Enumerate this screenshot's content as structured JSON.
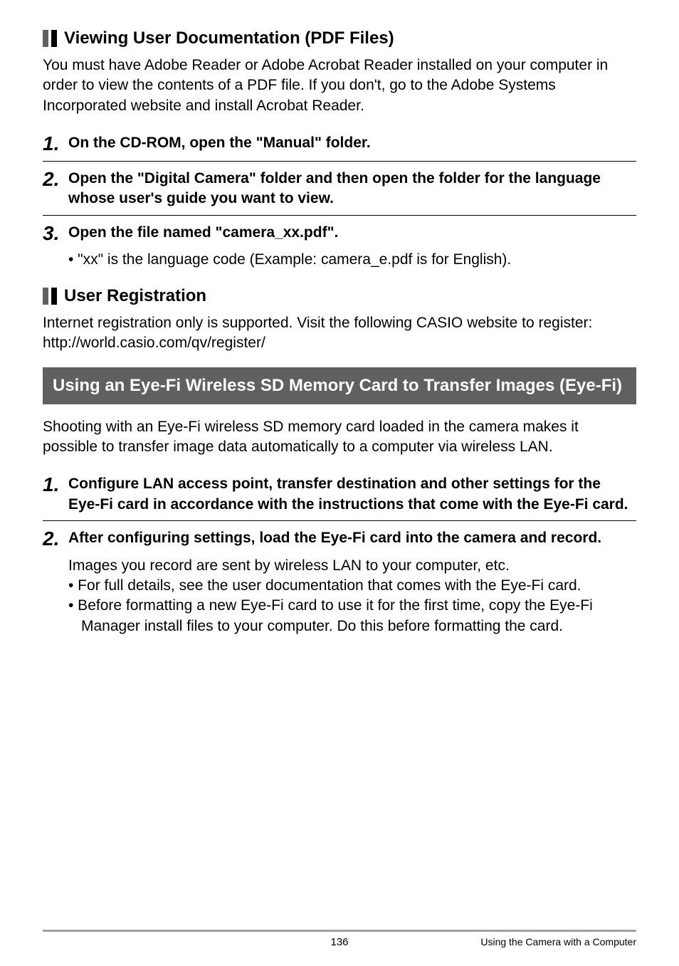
{
  "h2a": "Viewing User Documentation (PDF Files)",
  "p1": "You must have Adobe Reader or Adobe Acrobat Reader installed on your computer in order to view the contents of a PDF file. If you don't, go to the Adobe Systems Incorporated website and install Acrobat Reader.",
  "s1n": "1.",
  "s1t": "On the CD-ROM, open the \"Manual\" folder.",
  "s2n": "2.",
  "s2t": "Open the \"Digital Camera\" folder and then open the folder for the language whose user's guide you want to view.",
  "s3n": "3.",
  "s3t": "Open the file named \"camera_xx.pdf\".",
  "s3b": "• \"xx\" is the language code (Example: camera_e.pdf is for English).",
  "h2b": "User Registration",
  "p2a": "Internet registration only is supported. Visit the following CASIO website to register:",
  "p2b": "http://world.casio.com/qv/register/",
  "secBox": "Using an Eye-Fi Wireless SD Memory Card to Transfer Images (Eye-Fi)",
  "p3": "Shooting with an Eye-Fi wireless SD memory card loaded in the camera makes it possible to transfer image data automatically to a computer via wireless LAN.",
  "s4n": "1.",
  "s4t": "Configure LAN access point, transfer destination and other settings for the Eye-Fi card in accordance with the instructions that come with the Eye-Fi card.",
  "s5n": "2.",
  "s5t": "After configuring settings, load the Eye-Fi card into the camera and record.",
  "s5a": "Images you record are sent by wireless LAN to your computer, etc.",
  "s5b1": "• For full details, see the user documentation that comes with the Eye-Fi card.",
  "s5b2": "• Before formatting a new Eye-Fi card to use it for the first time, copy the Eye-Fi Manager install files to your computer. Do this before formatting the card.",
  "footerPage": "136",
  "footerRight": "Using the Camera with a Computer"
}
